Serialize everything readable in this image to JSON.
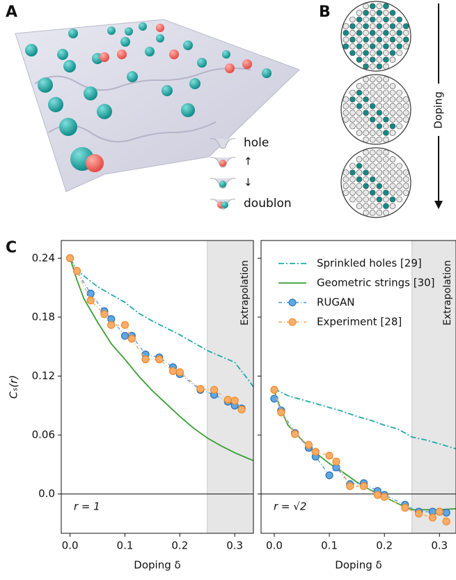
{
  "figure": {
    "panel_labels": [
      "A",
      "B",
      "C"
    ],
    "illustration_legend": [
      "hole",
      "↑",
      "↓",
      "doublon"
    ],
    "doping_arrow_label": "Doping"
  },
  "chart_data": [
    {
      "type": "line",
      "ylabel": "Cₛ(r)",
      "xlabel": "Doping δ",
      "annotation": "r = 1",
      "xlim": [
        -0.016,
        0.334
      ],
      "ylim": [
        -0.04,
        0.258
      ],
      "xticks": [
        {
          "value": 0,
          "label": "0.0"
        },
        0.1,
        0.2,
        0.3
      ],
      "yticks": [
        {
          "value": 0,
          "label": "0.0"
        },
        0.06,
        0.12,
        0.18,
        0.24
      ],
      "show_ytick_labels": true,
      "extrapolation": {
        "from": 0.25,
        "label": "Extrapolation"
      },
      "series": [
        {
          "style": "dashdot",
          "color": "#20a9a9",
          "x": [
            0,
            0.0125,
            0.025,
            0.05,
            0.075,
            0.1,
            0.125,
            0.15,
            0.175,
            0.2,
            0.225,
            0.25,
            0.275,
            0.3,
            0.325,
            0.334
          ],
          "values": [
            0.24,
            0.228,
            0.222,
            0.211,
            0.203,
            0.195,
            0.184,
            0.176,
            0.169,
            0.162,
            0.154,
            0.146,
            0.14,
            0.134,
            0.116,
            0.109
          ]
        },
        {
          "style": "solid",
          "color": "#3a9e35",
          "x": [
            0,
            0.0125,
            0.025,
            0.05,
            0.075,
            0.1,
            0.125,
            0.15,
            0.175,
            0.2,
            0.225,
            0.25,
            0.275,
            0.3,
            0.325,
            0.334
          ],
          "values": [
            0.24,
            0.218,
            0.199,
            0.175,
            0.153,
            0.137,
            0.12,
            0.105,
            0.092,
            0.079,
            0.067,
            0.057,
            0.049,
            0.042,
            0.036,
            0.034
          ]
        },
        {
          "style": "markers",
          "color": "#5ea7e3",
          "x": [
            0,
            0.0125,
            0.0375,
            0.0625,
            0.075,
            0.1,
            0.1125,
            0.1375,
            0.1625,
            0.1875,
            0.2,
            0.2375,
            0.2625,
            0.2875,
            0.3,
            0.3125
          ],
          "values": [
            0.24,
            0.227,
            0.204,
            0.186,
            0.178,
            0.161,
            0.161,
            0.142,
            0.139,
            0.129,
            0.122,
            0.106,
            0.101,
            0.094,
            0.09,
            0.087
          ]
        },
        {
          "style": "markers",
          "color": "#f9ad68",
          "x": [
            0,
            0.0125,
            0.0375,
            0.0625,
            0.075,
            0.1,
            0.1125,
            0.1375,
            0.1625,
            0.1875,
            0.2,
            0.2375,
            0.2625,
            0.2875,
            0.3,
            0.3125
          ],
          "values": [
            0.24,
            0.227,
            0.197,
            0.183,
            0.172,
            0.172,
            0.158,
            0.137,
            0.137,
            0.125,
            0.124,
            0.107,
            0.106,
            0.096,
            0.095,
            0.086
          ]
        }
      ]
    },
    {
      "type": "line",
      "xlabel": "Doping δ",
      "annotation": "r = √2",
      "xlim": [
        -0.024,
        0.33
      ],
      "ylim": [
        -0.04,
        0.258
      ],
      "xticks": [
        {
          "value": 0,
          "label": "0.0"
        },
        0.1,
        0.2,
        0.3
      ],
      "yticks": [
        0,
        0.06,
        0.12,
        0.18,
        0.24
      ],
      "show_ytick_labels": false,
      "extrapolation": {
        "from": 0.25,
        "label": "Extrapolation"
      },
      "legend": "upper right",
      "series": [
        {
          "name": "Sprinkled holes [29]",
          "style": "dashdot",
          "color": "#20a9a9",
          "x": [
            0,
            0.025,
            0.05,
            0.075,
            0.1,
            0.125,
            0.15,
            0.175,
            0.2,
            0.225,
            0.25,
            0.275,
            0.3,
            0.33
          ],
          "values": [
            0.107,
            0.1,
            0.096,
            0.092,
            0.088,
            0.084,
            0.079,
            0.075,
            0.07,
            0.066,
            0.058,
            0.055,
            0.051,
            0.046
          ]
        },
        {
          "name": "Geometric strings [30]",
          "style": "solid",
          "color": "#3a9e35",
          "x": [
            0,
            0.0125,
            0.025,
            0.05,
            0.075,
            0.1,
            0.125,
            0.15,
            0.175,
            0.2,
            0.225,
            0.25,
            0.275,
            0.3,
            0.33
          ],
          "values": [
            0.105,
            0.085,
            0.07,
            0.055,
            0.042,
            0.031,
            0.022,
            0.012,
            0.004,
            -0.003,
            -0.01,
            -0.016,
            -0.016,
            -0.016,
            -0.015
          ]
        },
        {
          "name": "RUGAN",
          "style": "markers",
          "color": "#5ea7e3",
          "x": [
            0,
            0.0125,
            0.0375,
            0.0625,
            0.075,
            0.1,
            0.1125,
            0.1375,
            0.1625,
            0.1875,
            0.2,
            0.2375,
            0.2625,
            0.2875,
            0.3,
            0.3125
          ],
          "values": [
            0.097,
            0.085,
            0.062,
            0.047,
            0.038,
            0.019,
            0.027,
            0.01,
            0.011,
            0.003,
            -0.001,
            -0.011,
            -0.018,
            -0.018,
            -0.018,
            -0.019
          ]
        },
        {
          "name": "Experiment [28]",
          "style": "markers",
          "color": "#f9ad68",
          "x": [
            0,
            0.0125,
            0.0375,
            0.0625,
            0.075,
            0.1,
            0.1125,
            0.1375,
            0.1625,
            0.1875,
            0.2,
            0.2375,
            0.2625,
            0.2875,
            0.3,
            0.3125
          ],
          "values": [
            0.106,
            0.083,
            0.061,
            0.05,
            0.043,
            0.039,
            0.033,
            0.008,
            0.008,
            -0.001,
            -0.003,
            -0.014,
            -0.02,
            -0.024,
            -0.018,
            -0.028
          ]
        }
      ]
    }
  ]
}
